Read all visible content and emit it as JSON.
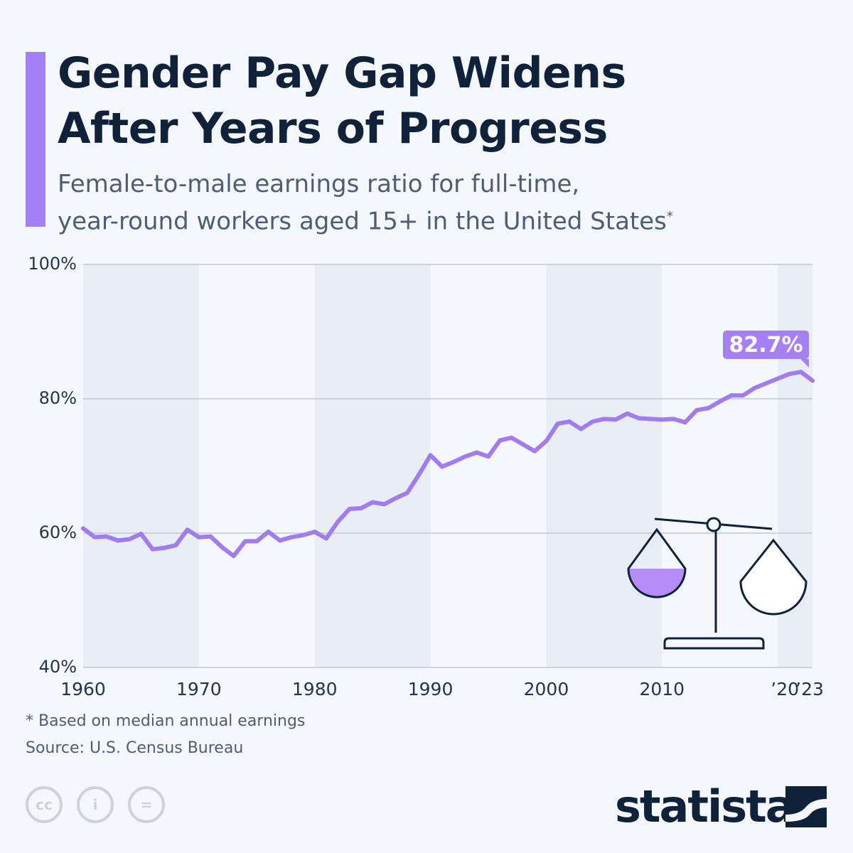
{
  "header": {
    "title_line1": "Gender Pay Gap Widens",
    "title_line2": "After Years of Progress",
    "subtitle_line1": "Female-to-male earnings ratio for full-time,",
    "subtitle_line2": "year-round workers aged 15+ in the United States",
    "subtitle_mark": "*"
  },
  "colors": {
    "accent": "#a57ff5",
    "title": "#0f2239",
    "band": "#e9eef6"
  },
  "chart_data": {
    "type": "line",
    "title": "Female-to-male earnings ratio",
    "xlabel": "",
    "ylabel": "",
    "ylim": [
      40,
      100
    ],
    "xlim": [
      1960,
      2023
    ],
    "yticks": [
      "40%",
      "60%",
      "80%",
      "100%"
    ],
    "xticks": [
      {
        "year": 1960,
        "label": "1960"
      },
      {
        "year": 1970,
        "label": "1970"
      },
      {
        "year": 1980,
        "label": "1980"
      },
      {
        "year": 1990,
        "label": "1990"
      },
      {
        "year": 2000,
        "label": "2000"
      },
      {
        "year": 2010,
        "label": "2010"
      },
      {
        "year": 2020,
        "label": "’20"
      },
      {
        "year": 2023,
        "label": "’23"
      }
    ],
    "grid": true,
    "series": [
      {
        "name": "Female-to-male earnings ratio (%)",
        "x": [
          1960,
          1961,
          1962,
          1963,
          1964,
          1965,
          1966,
          1967,
          1968,
          1969,
          1970,
          1971,
          1972,
          1973,
          1974,
          1975,
          1976,
          1977,
          1978,
          1979,
          1980,
          1981,
          1982,
          1983,
          1984,
          1985,
          1986,
          1987,
          1988,
          1989,
          1990,
          1991,
          1992,
          1993,
          1994,
          1995,
          1996,
          1997,
          1998,
          1999,
          2000,
          2001,
          2002,
          2003,
          2004,
          2005,
          2006,
          2007,
          2008,
          2009,
          2010,
          2011,
          2012,
          2013,
          2014,
          2015,
          2016,
          2017,
          2018,
          2019,
          2020,
          2021,
          2022,
          2023
        ],
        "values": [
          60.7,
          59.4,
          59.5,
          58.9,
          59.1,
          59.9,
          57.6,
          57.8,
          58.2,
          60.5,
          59.4,
          59.5,
          57.9,
          56.6,
          58.8,
          58.8,
          60.2,
          58.9,
          59.4,
          59.7,
          60.2,
          59.2,
          61.7,
          63.6,
          63.7,
          64.6,
          64.3,
          65.2,
          66.0,
          68.7,
          71.6,
          69.9,
          70.6,
          71.4,
          72.0,
          71.4,
          73.8,
          74.2,
          73.2,
          72.2,
          73.7,
          76.3,
          76.6,
          75.5,
          76.6,
          77.0,
          76.9,
          77.8,
          77.1,
          77.0,
          76.9,
          77.0,
          76.5,
          78.3,
          78.6,
          79.6,
          80.5,
          80.5,
          81.6,
          82.3,
          83.0,
          83.7,
          84.0,
          82.7
        ]
      }
    ],
    "annotations": [
      {
        "label": "82.7%",
        "year": 2023
      }
    ]
  },
  "footer": {
    "note": "* Based on median annual earnings",
    "source": "Source: U.S. Census Bureau",
    "cc": "cc",
    "by": "i",
    "nd": "=",
    "logo": "statista"
  }
}
